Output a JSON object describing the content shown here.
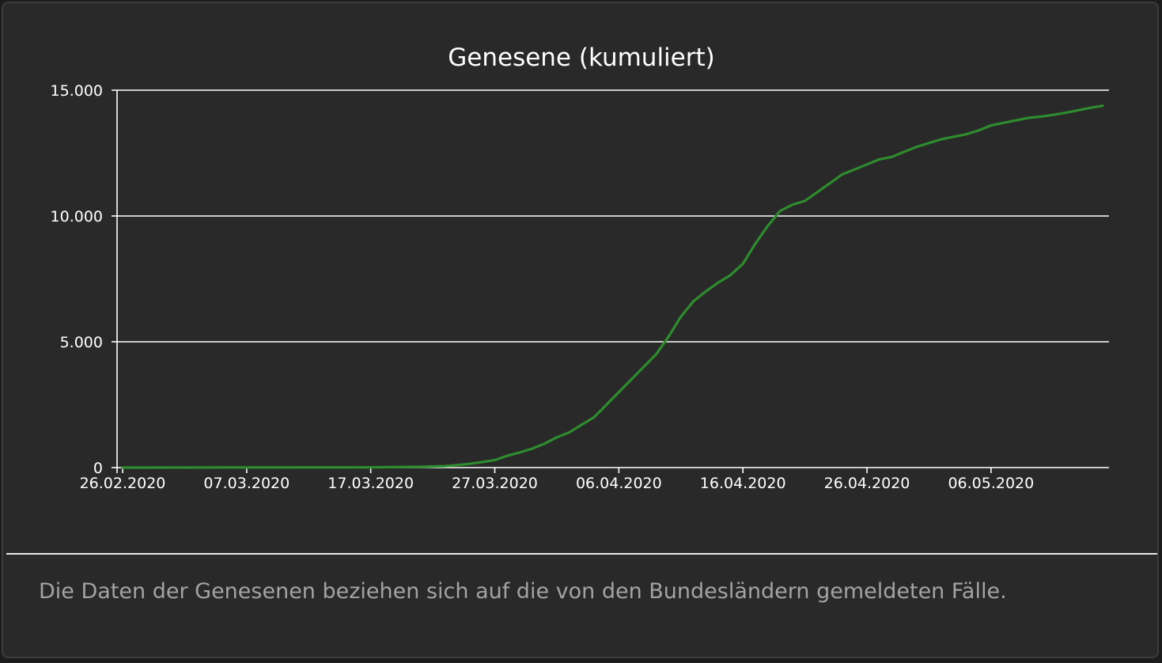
{
  "chart_data": {
    "type": "line",
    "title": "Genesene (kumuliert)",
    "xlabel": "",
    "ylabel": "",
    "x_start": "26.02.2020",
    "x_end": "15.05.2020",
    "x_ticks": [
      "26.02.2020",
      "07.03.2020",
      "17.03.2020",
      "27.03.2020",
      "06.04.2020",
      "16.04.2020",
      "26.04.2020",
      "06.05.2020"
    ],
    "y_ticks": [
      "0",
      "5.000",
      "10.000",
      "15.000"
    ],
    "ylim": [
      0,
      15000
    ],
    "grid": "horizontal",
    "legend": "none",
    "series": [
      {
        "color": "#2e8b2e",
        "points": [
          [
            "26.02.2020",
            0
          ],
          [
            "17.03.2020",
            10
          ],
          [
            "21.03.2020",
            30
          ],
          [
            "23.03.2020",
            60
          ],
          [
            "24.03.2020",
            100
          ],
          [
            "25.03.2020",
            150
          ],
          [
            "26.03.2020",
            220
          ],
          [
            "27.03.2020",
            300
          ],
          [
            "28.03.2020",
            470
          ],
          [
            "29.03.2020",
            600
          ],
          [
            "30.03.2020",
            750
          ],
          [
            "31.03.2020",
            950
          ],
          [
            "01.04.2020",
            1200
          ],
          [
            "02.04.2020",
            1400
          ],
          [
            "03.04.2020",
            1700
          ],
          [
            "04.04.2020",
            2000
          ],
          [
            "05.04.2020",
            2500
          ],
          [
            "06.04.2020",
            3000
          ],
          [
            "07.04.2020",
            3500
          ],
          [
            "08.04.2020",
            4000
          ],
          [
            "09.04.2020",
            4500
          ],
          [
            "10.04.2020",
            5200
          ],
          [
            "11.04.2020",
            6000
          ],
          [
            "12.04.2020",
            6600
          ],
          [
            "13.04.2020",
            7000
          ],
          [
            "14.04.2020",
            7350
          ],
          [
            "15.04.2020",
            7650
          ],
          [
            "16.04.2020",
            8100
          ],
          [
            "17.04.2020",
            8900
          ],
          [
            "18.04.2020",
            9600
          ],
          [
            "19.04.2020",
            10200
          ],
          [
            "20.04.2020",
            10450
          ],
          [
            "21.04.2020",
            10600
          ],
          [
            "22.04.2020",
            10950
          ],
          [
            "23.04.2020",
            11300
          ],
          [
            "24.04.2020",
            11650
          ],
          [
            "25.04.2020",
            11850
          ],
          [
            "26.04.2020",
            12050
          ],
          [
            "27.04.2020",
            12250
          ],
          [
            "28.04.2020",
            12350
          ],
          [
            "29.04.2020",
            12550
          ],
          [
            "30.04.2020",
            12750
          ],
          [
            "01.05.2020",
            12900
          ],
          [
            "02.05.2020",
            13050
          ],
          [
            "03.05.2020",
            13150
          ],
          [
            "04.05.2020",
            13250
          ],
          [
            "05.05.2020",
            13400
          ],
          [
            "06.05.2020",
            13600
          ],
          [
            "07.05.2020",
            13700
          ],
          [
            "08.05.2020",
            13800
          ],
          [
            "09.05.2020",
            13900
          ],
          [
            "10.05.2020",
            13950
          ],
          [
            "11.05.2020",
            14020
          ],
          [
            "12.05.2020",
            14100
          ],
          [
            "13.05.2020",
            14200
          ],
          [
            "14.05.2020",
            14300
          ],
          [
            "15.05.2020",
            14380
          ]
        ]
      }
    ]
  },
  "footnote": "Die Daten der Genesenen beziehen sich auf die von den Bundesländern gemeldeten Fälle.",
  "colors": {
    "background": "#292929",
    "line": "#2e8b2e",
    "grid": "#ffffff",
    "text": "#ffffff",
    "footnote": "#a3a3a3"
  }
}
